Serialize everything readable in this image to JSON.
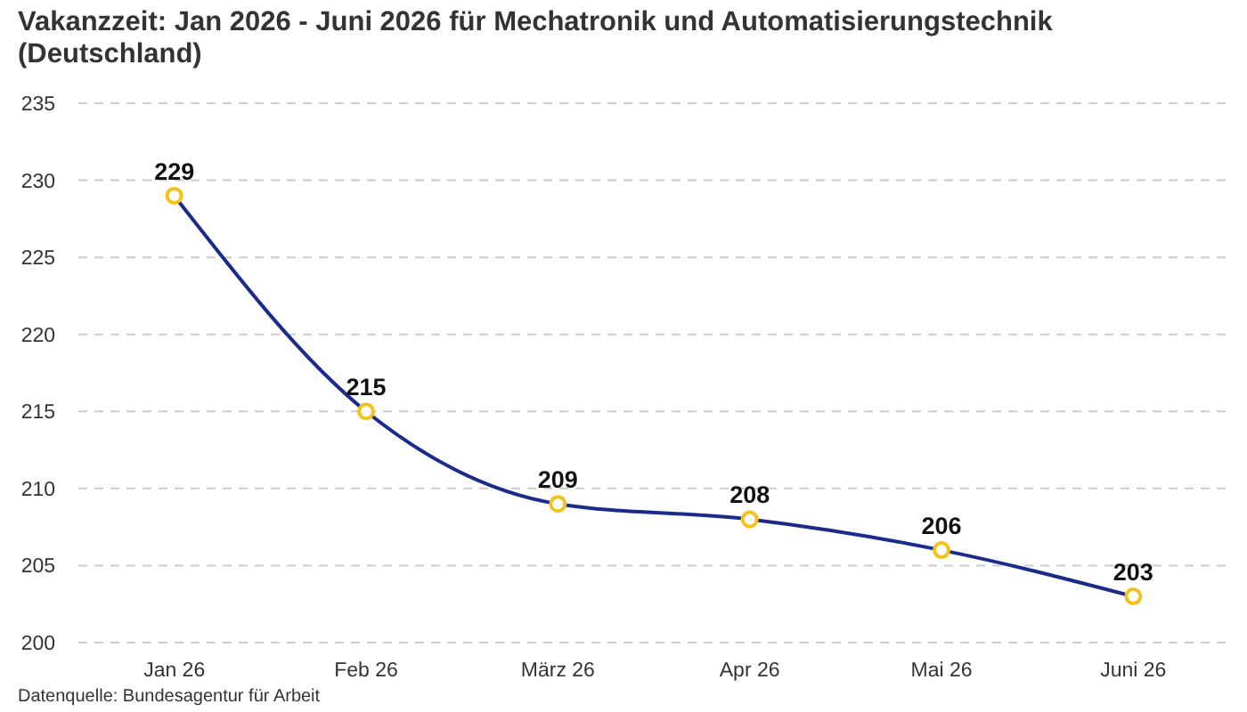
{
  "chart_data": {
    "type": "line",
    "title": "Vakanzzeit: Jan 2026 - Juni 2026 für Mechatronik und Automatisierungstechnik (Deutschland)",
    "categories": [
      "Jan 26",
      "Feb 26",
      "März 26",
      "Apr 26",
      "Mai 26",
      "Juni 26"
    ],
    "series": [
      {
        "color": "#1a2b8c",
        "colors": [
          "#f5c21b",
          "#f5c21b",
          "#f5c21b",
          "#f5c21b",
          "#f5c21b",
          "#f5c21b"
        ],
        "values": [
          229,
          215,
          209,
          208,
          206,
          203
        ]
      }
    ],
    "ylim": [
      200,
      235
    ],
    "yticks": [
      200,
      205,
      210,
      215,
      220,
      225,
      230,
      235
    ],
    "grid": "y",
    "marker": "circle",
    "line_style": "solid",
    "data_labels": true,
    "annotations": [
      "Datenquelle: Bundesagentur für Arbeit"
    ]
  }
}
